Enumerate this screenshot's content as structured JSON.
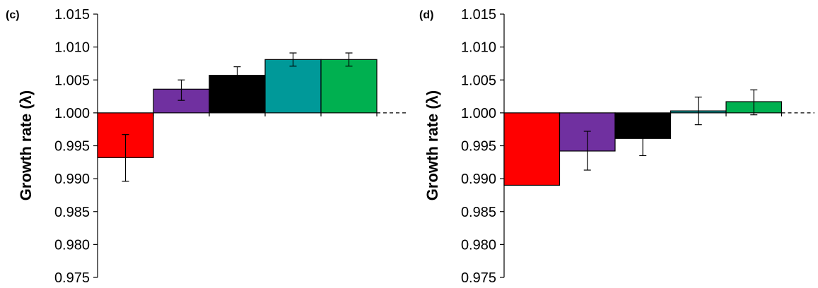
{
  "chart_data": [
    {
      "type": "bar",
      "panel_label": "(c)",
      "ylabel": "Growth rate (λ)",
      "ylim": [
        0.975,
        1.015
      ],
      "baseline": 1.0,
      "yticks": [
        "0.975",
        "0.980",
        "0.985",
        "0.990",
        "0.995",
        "1.000",
        "1.005",
        "1.010",
        "1.015"
      ],
      "bars": [
        {
          "value": 0.9932,
          "err_low": 0.9896,
          "err_high": 0.9967,
          "color": "#ff0000"
        },
        {
          "value": 1.0036,
          "err_low": 1.0019,
          "err_high": 1.005,
          "color": "#7030a0"
        },
        {
          "value": 1.0057,
          "err_low": 1.0046,
          "err_high": 1.007,
          "color": "#000000"
        },
        {
          "value": 1.0081,
          "err_low": 1.0071,
          "err_high": 1.0091,
          "color": "#009999"
        },
        {
          "value": 1.0081,
          "err_low": 1.0071,
          "err_high": 1.0091,
          "color": "#00b050"
        }
      ]
    },
    {
      "type": "bar",
      "panel_label": "(d)",
      "ylabel": "Growth rate (λ)",
      "ylim": [
        0.975,
        1.015
      ],
      "baseline": 1.0,
      "yticks": [
        "0.975",
        "0.980",
        "0.985",
        "0.990",
        "0.995",
        "1.000",
        "1.005",
        "1.010",
        "1.015"
      ],
      "bars": [
        {
          "value": 0.989,
          "err_low": null,
          "err_high": null,
          "color": "#ff0000"
        },
        {
          "value": 0.9942,
          "err_low": 0.9913,
          "err_high": 0.9972,
          "color": "#7030a0"
        },
        {
          "value": 0.9961,
          "err_low": 0.9935,
          "err_high": 0.9976,
          "color": "#000000"
        },
        {
          "value": 1.0003,
          "err_low": 0.9982,
          "err_high": 1.0024,
          "color": "#009999"
        },
        {
          "value": 1.0017,
          "err_low": 0.9997,
          "err_high": 1.0035,
          "color": "#00b050"
        }
      ]
    }
  ]
}
